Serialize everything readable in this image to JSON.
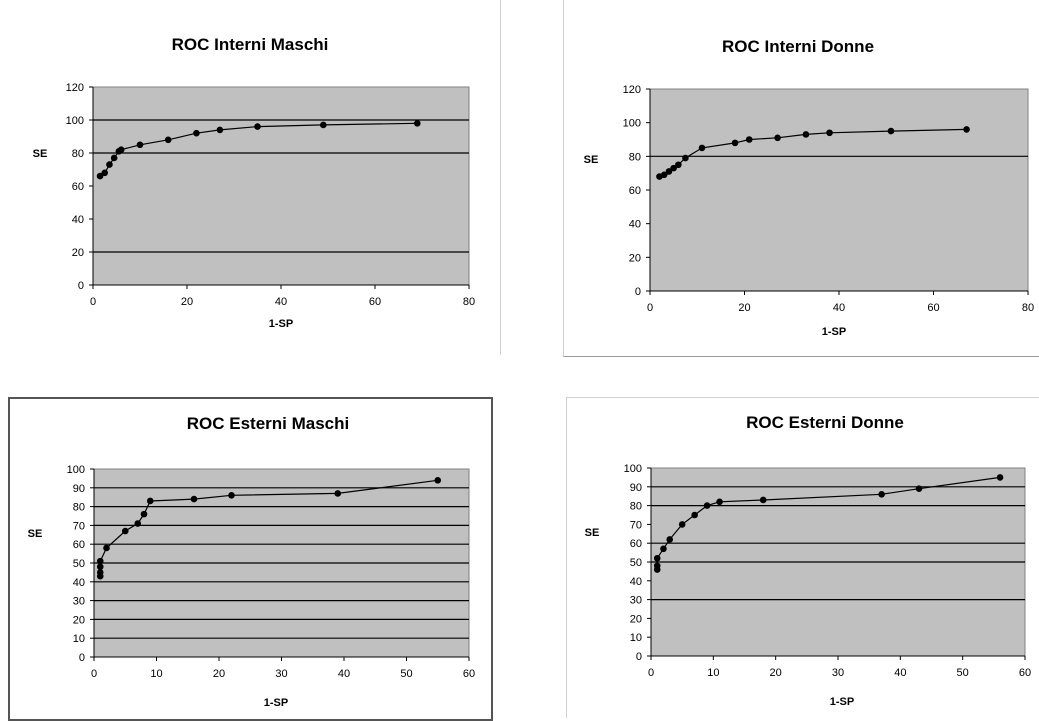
{
  "chart_data": [
    {
      "type": "scatter",
      "title": "ROC Interni Maschi",
      "xlabel": "1-SP",
      "ylabel": "SE",
      "xlim": [
        0,
        80
      ],
      "ylim": [
        0,
        120
      ],
      "xticks": [
        "0",
        "20",
        "40",
        "60",
        "80"
      ],
      "yticks": [
        "0",
        "20",
        "40",
        "60",
        "80",
        "100",
        "120"
      ],
      "grid_y": [
        20,
        80,
        100
      ],
      "plot_area_color": "#c0c0c0",
      "series": [
        {
          "points": [
            [
              1.5,
              66
            ],
            [
              2.5,
              68
            ],
            [
              3.5,
              73
            ],
            [
              4.5,
              77
            ],
            [
              5.5,
              81
            ],
            [
              6,
              82
            ],
            [
              10,
              85
            ],
            [
              16,
              88
            ],
            [
              22,
              92
            ],
            [
              27,
              94
            ],
            [
              35,
              96
            ],
            [
              49,
              97
            ],
            [
              69,
              98
            ]
          ]
        }
      ]
    },
    {
      "type": "scatter",
      "title": "ROC Interni Donne",
      "xlabel": "1-SP",
      "ylabel": "SE",
      "xlim": [
        0,
        80
      ],
      "ylim": [
        0,
        120
      ],
      "xticks": [
        "0",
        "20",
        "40",
        "60",
        "80"
      ],
      "yticks": [
        "0",
        "20",
        "40",
        "60",
        "80",
        "100",
        "120"
      ],
      "grid_y": [
        80
      ],
      "plot_area_color": "#c0c0c0",
      "series": [
        {
          "points": [
            [
              2,
              68
            ],
            [
              3,
              69
            ],
            [
              4,
              71
            ],
            [
              5,
              73
            ],
            [
              6,
              75
            ],
            [
              7.5,
              79
            ],
            [
              11,
              85
            ],
            [
              18,
              88
            ],
            [
              21,
              90
            ],
            [
              27,
              91
            ],
            [
              33,
              93
            ],
            [
              38,
              94
            ],
            [
              51,
              95
            ],
            [
              67,
              96
            ]
          ]
        }
      ]
    },
    {
      "type": "scatter",
      "title": "ROC Esterni Maschi",
      "xlabel": "1-SP",
      "ylabel": "SE",
      "xlim": [
        0,
        60
      ],
      "ylim": [
        0,
        100
      ],
      "xticks": [
        "0",
        "10",
        "20",
        "30",
        "40",
        "50",
        "60"
      ],
      "yticks": [
        "0",
        "10",
        "20",
        "30",
        "40",
        "50",
        "60",
        "70",
        "80",
        "90",
        "100"
      ],
      "grid_y": [
        10,
        20,
        30,
        40,
        50,
        60,
        70,
        80,
        90
      ],
      "plot_area_color": "#c0c0c0",
      "series": [
        {
          "points": [
            [
              1,
              43
            ],
            [
              1,
              45
            ],
            [
              1,
              48
            ],
            [
              1,
              51
            ],
            [
              2,
              58
            ],
            [
              5,
              67
            ],
            [
              7,
              71
            ],
            [
              8,
              76
            ],
            [
              9,
              83
            ],
            [
              16,
              84
            ],
            [
              22,
              86
            ],
            [
              39,
              87
            ],
            [
              55,
              94
            ]
          ]
        }
      ]
    },
    {
      "type": "scatter",
      "title": "ROC Esterni Donne",
      "xlabel": "1-SP",
      "ylabel": "SE",
      "xlim": [
        0,
        60
      ],
      "ylim": [
        0,
        100
      ],
      "xticks": [
        "0",
        "10",
        "20",
        "30",
        "40",
        "50",
        "60"
      ],
      "yticks": [
        "0",
        "10",
        "20",
        "30",
        "40",
        "50",
        "60",
        "70",
        "80",
        "90",
        "100"
      ],
      "grid_y": [
        30,
        50,
        60,
        80,
        90
      ],
      "plot_area_color": "#c0c0c0",
      "series": [
        {
          "points": [
            [
              1,
              46
            ],
            [
              1,
              48
            ],
            [
              1,
              52
            ],
            [
              2,
              57
            ],
            [
              3,
              62
            ],
            [
              5,
              70
            ],
            [
              7,
              75
            ],
            [
              9,
              80
            ],
            [
              11,
              82
            ],
            [
              18,
              83
            ],
            [
              37,
              86
            ],
            [
              43,
              89
            ],
            [
              56,
              95
            ]
          ]
        }
      ]
    }
  ]
}
